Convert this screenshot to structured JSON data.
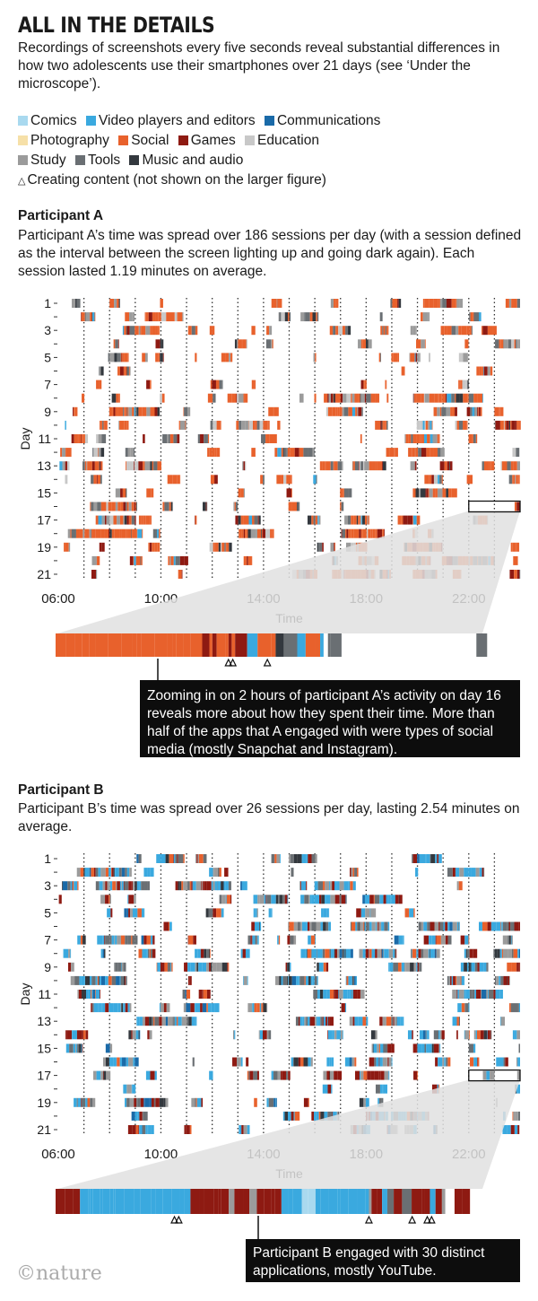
{
  "title": "ALL IN THE DETAILS",
  "subtitle": "Recordings of screenshots every five seconds reveal substantial differences in how two adolescents use their smartphones over 21 days (see ‘Under the microscope’).",
  "legend": [
    {
      "name": "Comics",
      "color": "#a9d9ef"
    },
    {
      "name": "Video players and editors",
      "color": "#3aa9df"
    },
    {
      "name": "Communications",
      "color": "#1a6aa8"
    },
    {
      "name": "Photography",
      "color": "#f6e0a8"
    },
    {
      "name": "Social",
      "color": "#e8612c"
    },
    {
      "name": "Games",
      "color": "#8e1a12"
    },
    {
      "name": "Education",
      "color": "#c8c8c8"
    },
    {
      "name": "Study",
      "color": "#9b9b9b"
    },
    {
      "name": "Tools",
      "color": "#6a6f73"
    },
    {
      "name": "Music and audio",
      "color": "#33383e"
    }
  ],
  "legend_note": "Creating content (not shown on the larger figure)",
  "triangle_symbol": "△",
  "participant_a": {
    "heading": "Participant A",
    "description": "Participant A’s time was spread over 186 sessions per day (with a session defined as the interval between the screen lighting up and going dark again). Each session lasted 1.19 minutes on average.",
    "callout": "Zooming in on 2 hours of participant A’s activity on day 16 reveals more about how they spent their time. More than half of the apps that A engaged with were types of social media (mostly Snapchat and Instagram)."
  },
  "participant_b": {
    "heading": "Participant B",
    "description": "Participant B’s time was spread over 26 sessions per day, lasting 2.54 minutes on average.",
    "callout": "Participant B engaged with 30 distinct applications, mostly YouTube."
  },
  "logo": "©nature",
  "chart_data": [
    {
      "type": "heatmap",
      "name": "Participant A",
      "ylabel": "Day",
      "xlabel": "Time",
      "y_ticks": [
        "1",
        "3",
        "5",
        "7",
        "9",
        "11",
        "13",
        "15",
        "17",
        "19",
        "21"
      ],
      "x_ticks": [
        "06:00",
        "10:00",
        "14:00",
        "18:00",
        "22:00"
      ],
      "x_range_hours": [
        6,
        24
      ],
      "days": 21,
      "dominant_categories": [
        "Social",
        "Games",
        "Study",
        "Tools",
        "Music and audio"
      ],
      "zoom_day": 16,
      "zoom_window_hours": [
        22,
        24
      ],
      "creating_content_marks_hours": [
        22.8,
        22.82,
        22.98
      ]
    },
    {
      "type": "heatmap",
      "name": "Participant B",
      "ylabel": "Day",
      "xlabel": "Time",
      "y_ticks": [
        "1",
        "3",
        "5",
        "7",
        "9",
        "11",
        "13",
        "15",
        "17",
        "19",
        "21"
      ],
      "x_ticks": [
        "06:00",
        "10:00",
        "14:00",
        "18:00",
        "22:00"
      ],
      "x_range_hours": [
        6,
        24
      ],
      "days": 21,
      "dominant_categories": [
        "Video players and editors",
        "Games",
        "Study",
        "Tools",
        "Social"
      ],
      "zoom_day": 17,
      "zoom_window_hours": [
        22,
        24
      ],
      "creating_content_marks_hours": [
        22.55,
        22.57,
        23.45,
        23.65,
        23.72,
        23.74
      ]
    }
  ]
}
